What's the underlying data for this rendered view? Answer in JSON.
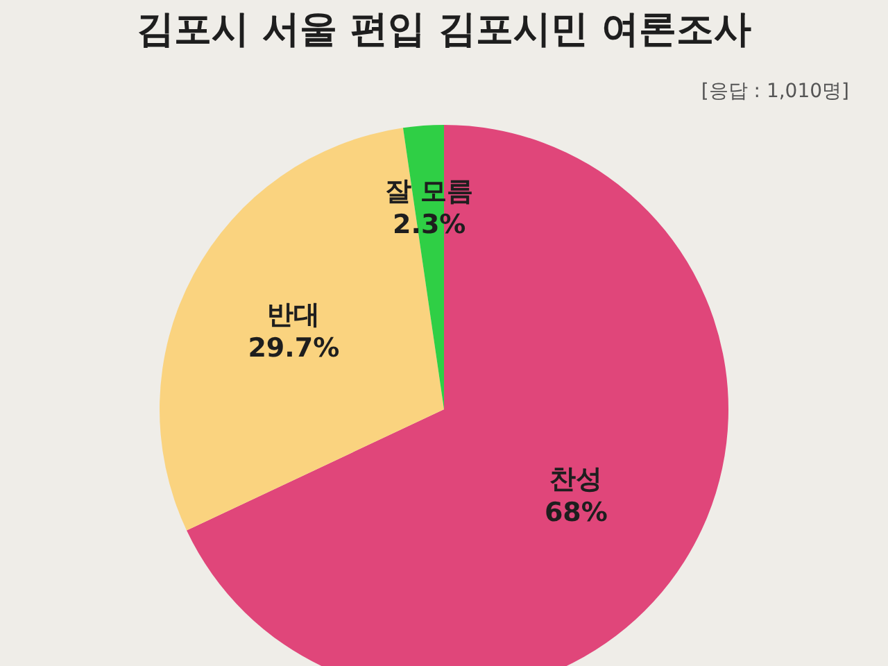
{
  "chart_data": {
    "type": "pie",
    "title": "김포시 서울 편입 김포시민 여론조사",
    "subtitle": "[응답 : 1,010명]",
    "categories": [
      "찬성",
      "반대",
      "잘 모름"
    ],
    "values": [
      68,
      29.7,
      2.3
    ],
    "colors": [
      "#e0467a",
      "#fad37f",
      "#2fcf45"
    ],
    "value_labels": [
      "68%",
      "29.7%",
      "2.3%"
    ],
    "legend": false
  }
}
